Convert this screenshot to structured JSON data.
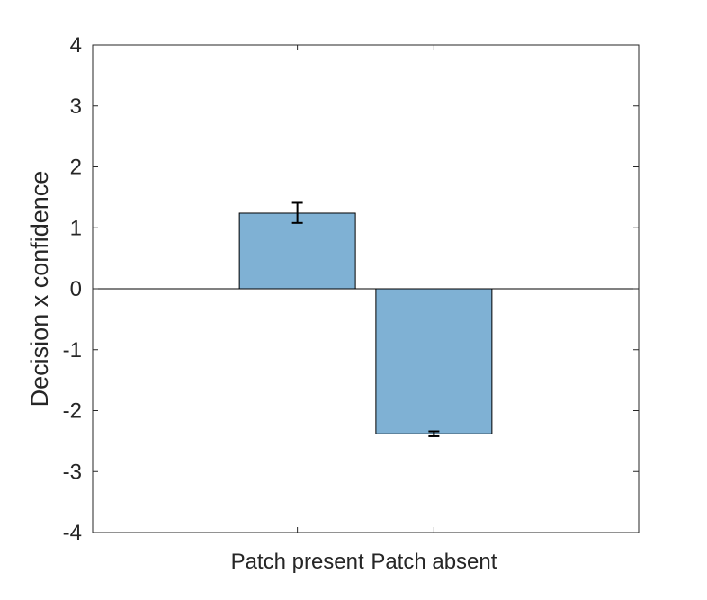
{
  "chart_data": {
    "type": "bar",
    "categories": [
      "Patch present",
      "Patch absent"
    ],
    "values": [
      1.24,
      -2.38
    ],
    "error_low": [
      1.08,
      -2.42
    ],
    "error_high": [
      1.41,
      -2.34
    ],
    "title": "",
    "xlabel": "",
    "ylabel": "Decision x confidence",
    "ylim": [
      -4,
      4
    ],
    "yticks": [
      -4,
      -3,
      -2,
      -1,
      0,
      1,
      2,
      3,
      4
    ],
    "grid": false,
    "legend": "none",
    "bar_color": "#7fb1d4",
    "edge_color": "#000000",
    "axis_color": "#262626"
  }
}
